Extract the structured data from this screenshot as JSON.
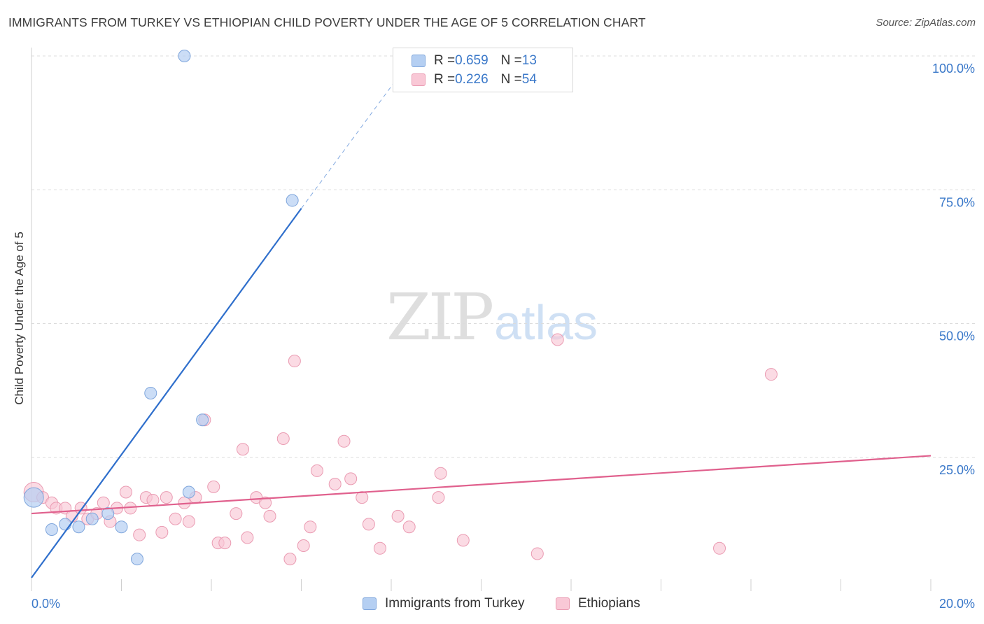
{
  "title": "IMMIGRANTS FROM TURKEY VS ETHIOPIAN CHILD POVERTY UNDER THE AGE OF 5 CORRELATION CHART",
  "source": "Source: ZipAtlas.com",
  "watermark": {
    "zip": "ZIP",
    "atlas": "atlas"
  },
  "legend": {
    "r_label": "R = ",
    "n_label": "N = ",
    "rows": [
      {
        "r": "0.659",
        "n": "13"
      },
      {
        "r": "0.226",
        "n": "54"
      }
    ]
  },
  "colors": {
    "turkey_fill": "#b5cff2",
    "turkey_stroke": "#7fa6dc",
    "turkey_line": "#2f6fcc",
    "ethiopian_fill": "#f9c8d6",
    "ethiopian_stroke": "#ea9bb2",
    "ethiopian_line": "#e0608d",
    "tick_label": "#3a78c9"
  },
  "chart_data": {
    "type": "scatter",
    "title": "IMMIGRANTS FROM TURKEY VS ETHIOPIAN CHILD POVERTY UNDER THE AGE OF 5 CORRELATION CHART",
    "xlabel": "",
    "ylabel": "Child Poverty Under the Age of 5",
    "xlim": [
      0,
      20
    ],
    "ylim": [
      0,
      100
    ],
    "x_tick_labels": [
      "0.0%",
      "20.0%"
    ],
    "y_tick_labels": [
      "25.0%",
      "50.0%",
      "75.0%",
      "100.0%"
    ],
    "y_ticks": [
      25,
      50,
      75,
      100
    ],
    "grid": true,
    "legend_position": "top-center",
    "series": [
      {
        "name": "Immigrants from Turkey",
        "r": 0.659,
        "n": 13,
        "trend": {
          "x": [
            0,
            6.0
          ],
          "y": [
            2.5,
            71.5
          ],
          "extended_to": [
            8.5,
            100
          ]
        },
        "points": [
          [
            0.05,
            17.5
          ],
          [
            0.45,
            11.5
          ],
          [
            0.75,
            12.5
          ],
          [
            1.05,
            12.0
          ],
          [
            1.35,
            13.5
          ],
          [
            1.7,
            14.5
          ],
          [
            2.0,
            12.0
          ],
          [
            2.35,
            6.0
          ],
          [
            2.65,
            37.0
          ],
          [
            3.4,
            100.0
          ],
          [
            3.5,
            18.5
          ],
          [
            3.8,
            32.0
          ],
          [
            5.8,
            73.0
          ]
        ]
      },
      {
        "name": "Ethiopians",
        "r": 0.226,
        "n": 54,
        "trend": {
          "x": [
            0,
            20
          ],
          "y": [
            14.5,
            25.3
          ]
        },
        "points": [
          [
            0.05,
            18.5
          ],
          [
            0.25,
            17.5
          ],
          [
            0.45,
            16.5
          ],
          [
            0.55,
            15.5
          ],
          [
            0.75,
            15.5
          ],
          [
            0.9,
            14.0
          ],
          [
            1.1,
            15.5
          ],
          [
            1.25,
            13.5
          ],
          [
            1.45,
            14.5
          ],
          [
            1.6,
            16.5
          ],
          [
            1.75,
            13.0
          ],
          [
            1.9,
            15.5
          ],
          [
            2.1,
            18.5
          ],
          [
            2.2,
            15.5
          ],
          [
            2.4,
            10.5
          ],
          [
            2.55,
            17.5
          ],
          [
            2.7,
            17.0
          ],
          [
            2.9,
            11.0
          ],
          [
            3.0,
            17.5
          ],
          [
            3.2,
            13.5
          ],
          [
            3.4,
            16.5
          ],
          [
            3.5,
            13.0
          ],
          [
            3.65,
            17.5
          ],
          [
            3.85,
            32.0
          ],
          [
            4.05,
            19.5
          ],
          [
            4.15,
            9.0
          ],
          [
            4.3,
            9.0
          ],
          [
            4.55,
            14.5
          ],
          [
            4.7,
            26.5
          ],
          [
            4.8,
            10.0
          ],
          [
            5.0,
            17.5
          ],
          [
            5.2,
            16.5
          ],
          [
            5.3,
            14.0
          ],
          [
            5.6,
            28.5
          ],
          [
            5.75,
            6.0
          ],
          [
            5.85,
            43.0
          ],
          [
            6.05,
            8.5
          ],
          [
            6.2,
            12.0
          ],
          [
            6.35,
            22.5
          ],
          [
            6.75,
            20.0
          ],
          [
            6.95,
            28.0
          ],
          [
            7.1,
            21.0
          ],
          [
            7.35,
            17.5
          ],
          [
            7.5,
            12.5
          ],
          [
            7.75,
            8.0
          ],
          [
            8.15,
            14.0
          ],
          [
            8.4,
            12.0
          ],
          [
            9.05,
            17.5
          ],
          [
            9.1,
            22.0
          ],
          [
            9.6,
            9.5
          ],
          [
            11.25,
            7.0
          ],
          [
            11.7,
            47.0
          ],
          [
            15.3,
            8.0
          ],
          [
            16.45,
            40.5
          ]
        ]
      }
    ]
  },
  "bottom_legend": [
    {
      "label": "Immigrants from Turkey"
    },
    {
      "label": "Ethiopians"
    }
  ]
}
